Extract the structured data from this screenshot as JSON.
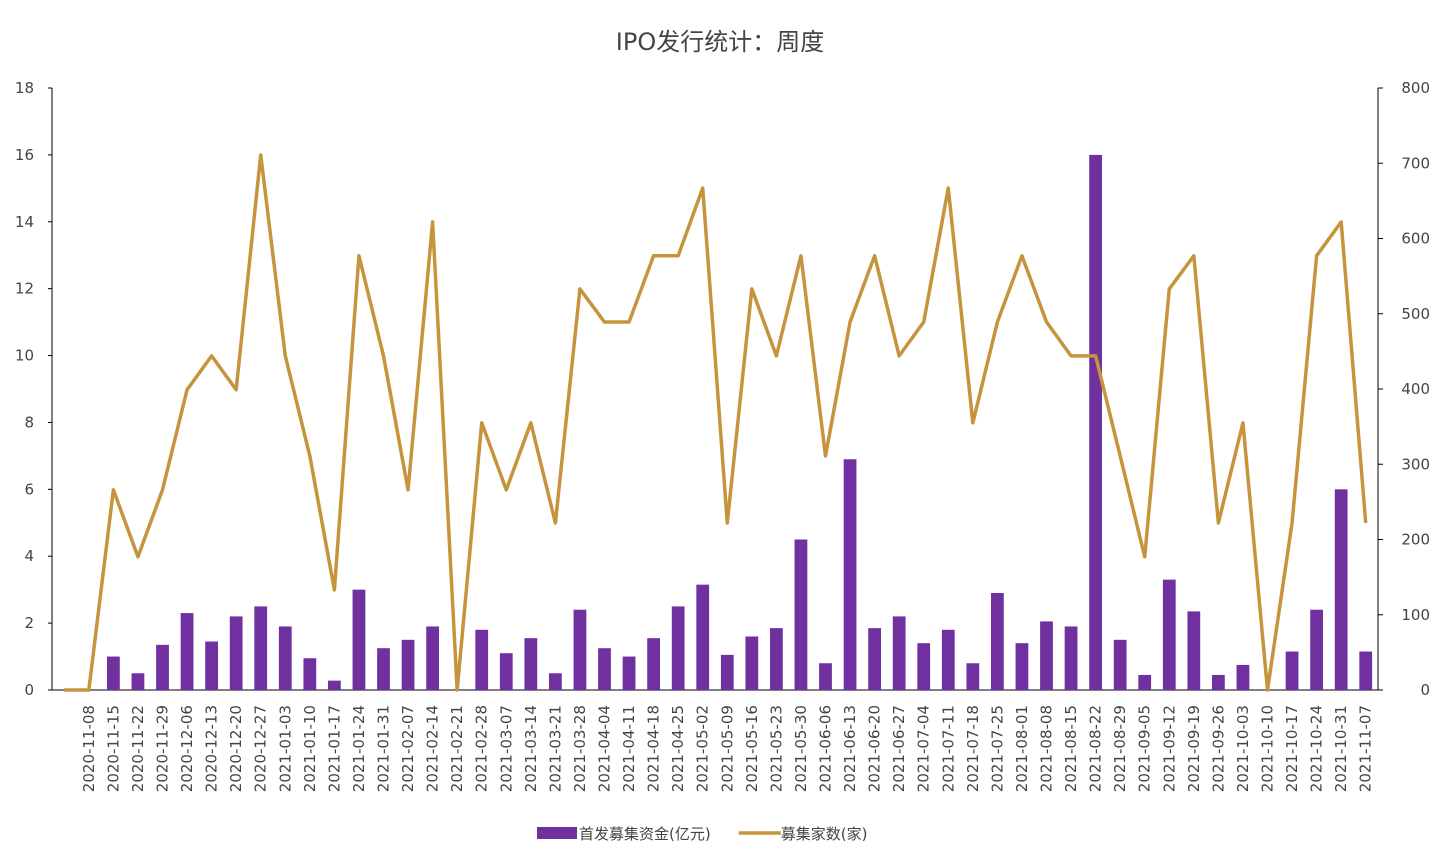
{
  "chart_data": {
    "type": "combo",
    "title": "IPO发行统计：周度",
    "categories": [
      null,
      "2020-11-08",
      "2020-11-15",
      "2020-11-22",
      "2020-11-29",
      "2020-12-06",
      "2020-12-13",
      "2020-12-20",
      "2020-12-27",
      "2021-01-03",
      "2021-01-10",
      "2021-01-17",
      "2021-01-24",
      "2021-01-31",
      "2021-02-07",
      "2021-02-14",
      "2021-02-21",
      "2021-02-28",
      "2021-03-07",
      "2021-03-14",
      "2021-03-21",
      "2021-03-28",
      "2021-04-04",
      "2021-04-11",
      "2021-04-18",
      "2021-04-25",
      "2021-05-02",
      "2021-05-09",
      "2021-05-16",
      "2021-05-23",
      "2021-05-30",
      "2021-06-06",
      "2021-06-13",
      "2021-06-20",
      "2021-06-27",
      "2021-07-04",
      "2021-07-11",
      "2021-07-18",
      "2021-07-25",
      "2021-08-01",
      "2021-08-08",
      "2021-08-15",
      "2021-08-22",
      "2021-08-29",
      "2021-09-05",
      "2021-09-12",
      "2021-09-19",
      "2021-09-26",
      "2021-10-03",
      "2021-10-10",
      "2021-10-17",
      "2021-10-24",
      "2021-10-31",
      "2021-11-07"
    ],
    "series": [
      {
        "name": "首发募集资金(亿元)",
        "type": "bar",
        "color": "#7030a0",
        "axis": "y",
        "values": [
          0,
          0,
          1.0,
          0.5,
          1.35,
          2.3,
          1.45,
          2.2,
          2.5,
          1.9,
          0.95,
          0.28,
          3.0,
          1.25,
          1.5,
          1.9,
          0,
          1.8,
          1.1,
          1.55,
          0.5,
          2.4,
          1.25,
          1.0,
          1.55,
          2.5,
          3.15,
          1.05,
          1.6,
          1.85,
          4.5,
          0.8,
          6.9,
          1.85,
          2.2,
          1.4,
          1.8,
          0.8,
          2.9,
          1.4,
          2.05,
          1.9,
          16.0,
          1.5,
          0.45,
          3.3,
          2.35,
          0.45,
          0.75,
          0,
          1.15,
          2.4,
          6.0,
          1.15
        ]
      },
      {
        "name": "募集家数(家)",
        "type": "line",
        "color": "#c5943c",
        "axis": "y2",
        "values": [
          0,
          0,
          266,
          177,
          266,
          399,
          444,
          399,
          711,
          444,
          311,
          133,
          577,
          444,
          266,
          622,
          0,
          355,
          266,
          355,
          222,
          533,
          489,
          489,
          577,
          577,
          667,
          222,
          533,
          444,
          577,
          311,
          489,
          577,
          444,
          489,
          667,
          355,
          489,
          577,
          489,
          444,
          444,
          311,
          177,
          533,
          577,
          222,
          355,
          0,
          222,
          577,
          622,
          222
        ]
      }
    ],
    "ylim": [
      0,
      18
    ],
    "yticks": [
      0,
      2,
      4,
      6,
      8,
      10,
      12,
      14,
      16,
      18
    ],
    "y2lim": [
      0,
      800
    ],
    "y2ticks": [
      0,
      100,
      200,
      300,
      400,
      500,
      600,
      700,
      800
    ],
    "grid": false,
    "legend": "bottom"
  }
}
